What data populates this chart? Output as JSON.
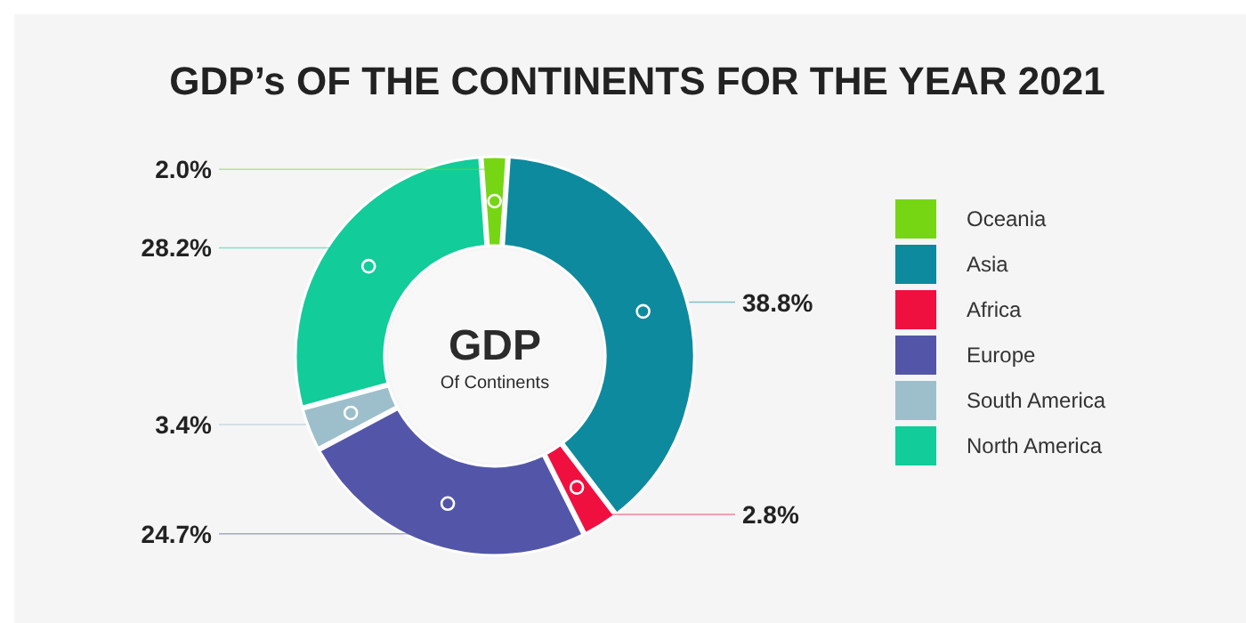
{
  "chart_data": {
    "type": "donut",
    "title": "GDP’s OF THE CONTINENTS FOR THE YEAR 2021",
    "annotations": [
      "GDP",
      "Of Continents"
    ],
    "categories": [
      "Oceania",
      "Asia",
      "Africa",
      "Europe",
      "South America",
      "North America"
    ],
    "values": [
      2.0,
      38.8,
      2.8,
      24.7,
      3.4,
      28.2
    ],
    "value_labels": [
      "2.0%",
      "38.8%",
      "2.8%",
      "24.7%",
      "3.4%",
      "28.2%"
    ],
    "colors": [
      "#76d614",
      "#0e8a9e",
      "#f0103f",
      "#5356a8",
      "#9dbfcb",
      "#12cc9a"
    ],
    "legend": "right"
  }
}
